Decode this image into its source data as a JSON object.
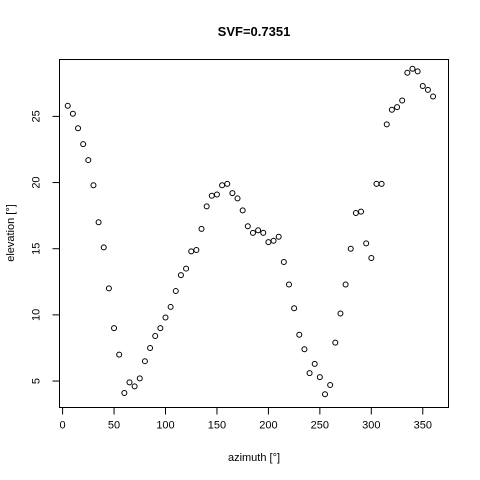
{
  "chart_data": {
    "type": "scatter",
    "title": "SVF=0.7351",
    "xlabel": "azimuth [°]",
    "ylabel": "elevation [°]",
    "xlim": [
      -3,
      375
    ],
    "ylim": [
      3,
      29.3
    ],
    "xticks": [
      0,
      50,
      100,
      150,
      200,
      250,
      300,
      350
    ],
    "yticks": [
      5,
      10,
      15,
      20,
      25
    ],
    "marker": "open-circle",
    "grid": false,
    "points": [
      {
        "x": 5,
        "y": 25.8
      },
      {
        "x": 10,
        "y": 25.2
      },
      {
        "x": 15,
        "y": 24.1
      },
      {
        "x": 20,
        "y": 22.9
      },
      {
        "x": 25,
        "y": 21.7
      },
      {
        "x": 30,
        "y": 19.8
      },
      {
        "x": 35,
        "y": 17.0
      },
      {
        "x": 40,
        "y": 15.1
      },
      {
        "x": 45,
        "y": 12.0
      },
      {
        "x": 50,
        "y": 9.0
      },
      {
        "x": 55,
        "y": 7.0
      },
      {
        "x": 60,
        "y": 4.1
      },
      {
        "x": 65,
        "y": 4.9
      },
      {
        "x": 70,
        "y": 4.6
      },
      {
        "x": 75,
        "y": 5.2
      },
      {
        "x": 80,
        "y": 6.5
      },
      {
        "x": 85,
        "y": 7.5
      },
      {
        "x": 90,
        "y": 8.4
      },
      {
        "x": 95,
        "y": 9.0
      },
      {
        "x": 100,
        "y": 9.8
      },
      {
        "x": 105,
        "y": 10.6
      },
      {
        "x": 110,
        "y": 11.8
      },
      {
        "x": 115,
        "y": 13.0
      },
      {
        "x": 120,
        "y": 13.5
      },
      {
        "x": 125,
        "y": 14.8
      },
      {
        "x": 130,
        "y": 14.9
      },
      {
        "x": 135,
        "y": 16.5
      },
      {
        "x": 140,
        "y": 18.2
      },
      {
        "x": 145,
        "y": 19.0
      },
      {
        "x": 150,
        "y": 19.1
      },
      {
        "x": 155,
        "y": 19.8
      },
      {
        "x": 160,
        "y": 19.9
      },
      {
        "x": 165,
        "y": 19.2
      },
      {
        "x": 170,
        "y": 18.8
      },
      {
        "x": 175,
        "y": 17.9
      },
      {
        "x": 180,
        "y": 16.7
      },
      {
        "x": 185,
        "y": 16.2
      },
      {
        "x": 190,
        "y": 16.4
      },
      {
        "x": 195,
        "y": 16.2
      },
      {
        "x": 200,
        "y": 15.5
      },
      {
        "x": 205,
        "y": 15.6
      },
      {
        "x": 210,
        "y": 15.9
      },
      {
        "x": 215,
        "y": 14.0
      },
      {
        "x": 220,
        "y": 12.3
      },
      {
        "x": 225,
        "y": 10.5
      },
      {
        "x": 230,
        "y": 8.5
      },
      {
        "x": 235,
        "y": 7.4
      },
      {
        "x": 240,
        "y": 5.6
      },
      {
        "x": 245,
        "y": 6.3
      },
      {
        "x": 250,
        "y": 5.3
      },
      {
        "x": 255,
        "y": 4.0
      },
      {
        "x": 260,
        "y": 4.7
      },
      {
        "x": 265,
        "y": 7.9
      },
      {
        "x": 270,
        "y": 10.1
      },
      {
        "x": 275,
        "y": 12.3
      },
      {
        "x": 280,
        "y": 15.0
      },
      {
        "x": 285,
        "y": 17.7
      },
      {
        "x": 290,
        "y": 17.8
      },
      {
        "x": 295,
        "y": 15.4
      },
      {
        "x": 300,
        "y": 14.3
      },
      {
        "x": 305,
        "y": 19.9
      },
      {
        "x": 310,
        "y": 19.9
      },
      {
        "x": 315,
        "y": 24.4
      },
      {
        "x": 320,
        "y": 25.5
      },
      {
        "x": 325,
        "y": 25.7
      },
      {
        "x": 330,
        "y": 26.2
      },
      {
        "x": 335,
        "y": 28.3
      },
      {
        "x": 340,
        "y": 28.6
      },
      {
        "x": 345,
        "y": 28.4
      },
      {
        "x": 350,
        "y": 27.3
      },
      {
        "x": 355,
        "y": 27.0
      },
      {
        "x": 360,
        "y": 26.5
      }
    ]
  }
}
